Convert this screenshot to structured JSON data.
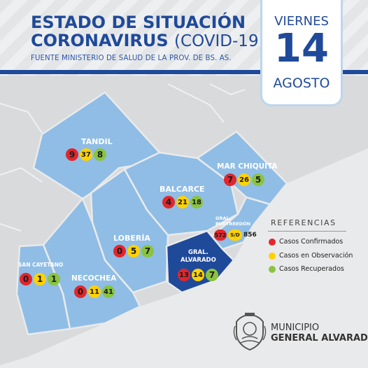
{
  "header": {
    "title_line1": "ESTADO DE SITUACIÓN",
    "title_line2_bold": "CORONAVIRUS",
    "title_line2_thin": "(COVID-19)",
    "source": "FUENTE MINISTERIO DE SALUD DE LA PROV. DE BS. AS."
  },
  "date": {
    "weekday": "VIERNES",
    "day": "14",
    "month": "AGOSTO"
  },
  "colors": {
    "brand_blue": "#1f4a9a",
    "region_fill": "#8fbde6",
    "highlight_region": "#1f4a9a",
    "confirmed": "#e2262b",
    "observation": "#ffd200",
    "recovered": "#8ac43f"
  },
  "districts": {
    "tandil": {
      "name": "TANDIL",
      "confirmed": "9",
      "observation": "37",
      "recovered": "8"
    },
    "mar_chiquita": {
      "name": "MAR CHIQUITA",
      "confirmed": "7",
      "observation": "26",
      "recovered": "5"
    },
    "balcarce": {
      "name": "BALCARCE",
      "confirmed": "4",
      "observation": "21",
      "recovered": "18"
    },
    "loberia": {
      "name": "LOBERÍA",
      "confirmed": "0",
      "observation": "5",
      "recovered": "7"
    },
    "gral_pueyrredon": {
      "name_line1": "GRAL.",
      "name_line2": "PUEYRREDÓN",
      "confirmed": "572",
      "observation": "S/D",
      "recovered": "856"
    },
    "gral_alvarado": {
      "name_line1": "GRAL.",
      "name_line2": "ALVARADO",
      "confirmed": "13",
      "observation": "14",
      "recovered": "7"
    },
    "san_cayetano": {
      "name": "SAN CAYETANO",
      "confirmed": "0",
      "observation": "1",
      "recovered": "1"
    },
    "necochea": {
      "name": "NECOCHEA",
      "confirmed": "0",
      "observation": "11",
      "recovered": "41"
    }
  },
  "legend": {
    "title": "REFERENCIAS",
    "items": [
      {
        "label": "Casos Confirmados",
        "color": "#e2262b"
      },
      {
        "label": "Casos en Observación",
        "color": "#ffd200"
      },
      {
        "label": "Casos Recuperados",
        "color": "#8ac43f"
      }
    ]
  },
  "footer": {
    "line1": "MUNICIPIO",
    "line2": "GENERAL ALVARADO"
  }
}
